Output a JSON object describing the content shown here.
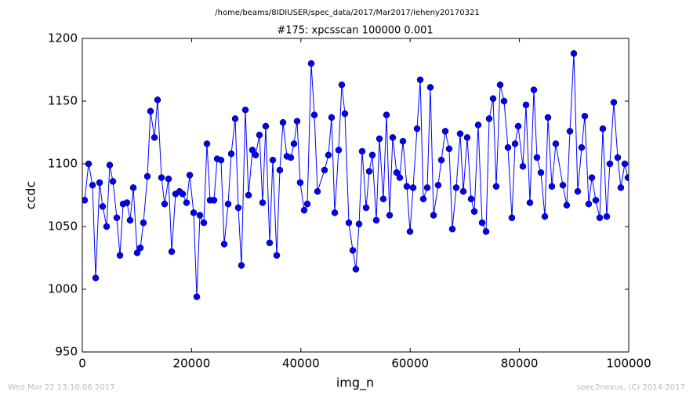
{
  "chart_data": {
    "type": "line",
    "suptitle": "/home/beams/8IDIUSER/spec_data/2017/Mar2017/leheny20170321",
    "title": "#175: xpcsscan 100000 0.001",
    "xlabel": "img_n",
    "ylabel": "ccdc",
    "timestamp": "Wed Mar 22 13:10:06 2017",
    "credit": "spec2nexus, (C) 2014-2017",
    "xlim": [
      0,
      100000
    ],
    "ylim": [
      950,
      1200
    ],
    "xticks": [
      0,
      20000,
      40000,
      60000,
      80000,
      100000
    ],
    "yticks": [
      950,
      1000,
      1050,
      1100,
      1150,
      1200
    ],
    "series": [
      {
        "name": "ccdc",
        "color": "#0000ff",
        "x": [
          430,
          1150,
          1870,
          2440,
          3160,
          3730,
          4450,
          5020,
          5600,
          6310,
          6890,
          7460,
          8180,
          8750,
          9330,
          10040,
          10620,
          11190,
          11910,
          12480,
          13200,
          13770,
          14490,
          15060,
          15780,
          16360,
          17070,
          17790,
          18360,
          19080,
          19660,
          20370,
          20950,
          21520,
          22240,
          22810,
          23390,
          24100,
          24680,
          25390,
          25970,
          26690,
          27260,
          27980,
          28550,
          29120,
          29840,
          30420,
          31130,
          31710,
          32420,
          33000,
          33570,
          34290,
          34860,
          35580,
          36150,
          36730,
          37450,
          38160,
          38740,
          39310,
          39880,
          40600,
          41180,
          41890,
          42470,
          43040,
          44330,
          45050,
          45620,
          46200,
          46910,
          47490,
          48060,
          48780,
          49500,
          50070,
          50650,
          51220,
          51940,
          52510,
          53080,
          53800,
          54380,
          55090,
          55670,
          56240,
          56810,
          57530,
          58110,
          58680,
          59400,
          59970,
          60540,
          61260,
          61840,
          62410,
          63130,
          63700,
          64280,
          65130,
          65710,
          66430,
          67140,
          67720,
          68430,
          69150,
          69730,
          70440,
          71160,
          71740,
          72450,
          73170,
          73890,
          74460,
          75180,
          75750,
          76470,
          77190,
          77900,
          78620,
          79200,
          79770,
          80630,
          81200,
          81920,
          82640,
          83210,
          83930,
          84650,
          85220,
          85940,
          86650,
          87950,
          88660,
          89240,
          89960,
          90670,
          91390,
          91960,
          92680,
          93260,
          93970,
          94690,
          95260,
          95980,
          96550,
          97270,
          97990,
          98560,
          99280,
          99860
        ],
        "values": [
          1071,
          1100,
          1083,
          1009,
          1085,
          1066,
          1050,
          1099,
          1086,
          1057,
          1027,
          1068,
          1069,
          1055,
          1081,
          1029,
          1033,
          1053,
          1090,
          1142,
          1121,
          1151,
          1089,
          1068,
          1088,
          1030,
          1076,
          1078,
          1076,
          1069,
          1091,
          1061,
          994,
          1059,
          1053,
          1116,
          1071,
          1071,
          1104,
          1103,
          1036,
          1068,
          1108,
          1136,
          1065,
          1019,
          1143,
          1075,
          1111,
          1107,
          1123,
          1069,
          1130,
          1037,
          1103,
          1027,
          1095,
          1133,
          1106,
          1105,
          1116,
          1134,
          1085,
          1063,
          1068,
          1180,
          1139,
          1078,
          1095,
          1107,
          1137,
          1061,
          1111,
          1163,
          1140,
          1053,
          1031,
          1016,
          1052,
          1110,
          1065,
          1094,
          1107,
          1055,
          1120,
          1072,
          1139,
          1059,
          1121,
          1093,
          1089,
          1118,
          1082,
          1046,
          1081,
          1128,
          1167,
          1072,
          1081,
          1161,
          1059,
          1083,
          1103,
          1126,
          1112,
          1048,
          1081,
          1124,
          1078,
          1121,
          1072,
          1062,
          1131,
          1053,
          1046,
          1136,
          1152,
          1082,
          1163,
          1150,
          1113,
          1057,
          1116,
          1130,
          1098,
          1147,
          1069,
          1159,
          1105,
          1093,
          1058,
          1137,
          1082,
          1116,
          1083,
          1067,
          1126,
          1188,
          1078,
          1113,
          1138,
          1068,
          1089,
          1071,
          1057,
          1128,
          1058,
          1100,
          1149,
          1105,
          1081,
          1100,
          1089
        ]
      }
    ]
  }
}
